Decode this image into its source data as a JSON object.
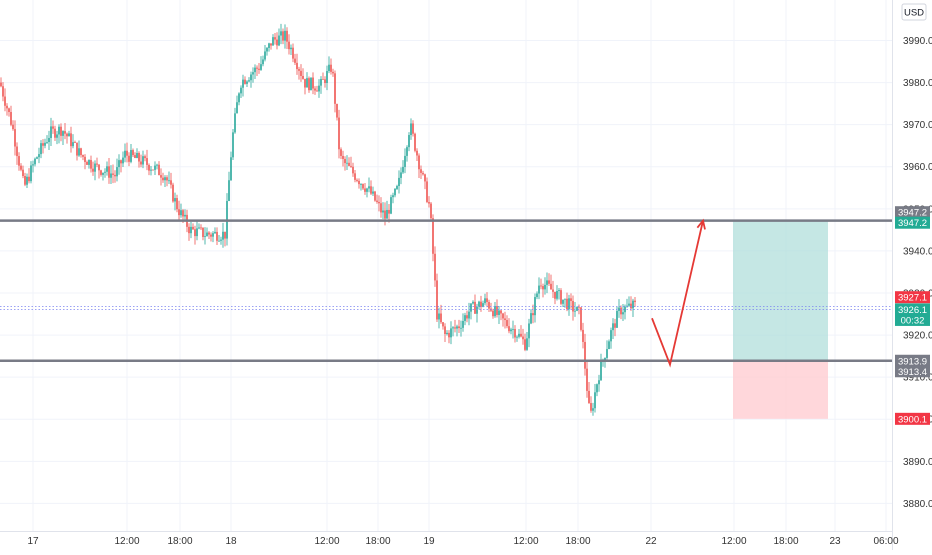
{
  "header": {
    "currency": "USD"
  },
  "chart_data": {
    "type": "candlestick",
    "currency": "USD",
    "ylim": [
      3877,
      3998
    ],
    "x_ticks": [
      "17",
      "12:00",
      "18:00",
      "18",
      "12:00",
      "18:00",
      "19",
      "12:00",
      "18:00",
      "22",
      "12:00",
      "18:00",
      "23",
      "06:00"
    ],
    "y_ticks": [
      3880.0,
      3890.0,
      3900.0,
      3910.0,
      3920.0,
      3930.0,
      3940.0,
      3950.0,
      3960.0,
      3970.0,
      3980.0,
      3990.0
    ],
    "price_path": [
      [
        0,
        3980
      ],
      [
        12,
        3970
      ],
      [
        24,
        3955
      ],
      [
        36,
        3962
      ],
      [
        50,
        3968
      ],
      [
        62,
        3969
      ],
      [
        80,
        3963
      ],
      [
        95,
        3960
      ],
      [
        115,
        3958
      ],
      [
        125,
        3963
      ],
      [
        145,
        3961
      ],
      [
        165,
        3958
      ],
      [
        178,
        3950
      ],
      [
        190,
        3945
      ],
      [
        205,
        3944
      ],
      [
        225,
        3944
      ],
      [
        232,
        3966
      ],
      [
        240,
        3980
      ],
      [
        260,
        3984
      ],
      [
        272,
        3990
      ],
      [
        285,
        3991
      ],
      [
        295,
        3986
      ],
      [
        305,
        3980
      ],
      [
        320,
        3979
      ],
      [
        332,
        3984
      ],
      [
        340,
        3962
      ],
      [
        355,
        3958
      ],
      [
        370,
        3954
      ],
      [
        385,
        3948
      ],
      [
        398,
        3955
      ],
      [
        410,
        3970
      ],
      [
        420,
        3960
      ],
      [
        430,
        3950
      ],
      [
        437,
        3925
      ],
      [
        445,
        3920
      ],
      [
        458,
        3922
      ],
      [
        470,
        3926
      ],
      [
        486,
        3928
      ],
      [
        500,
        3924
      ],
      [
        515,
        3921
      ],
      [
        525,
        3918
      ],
      [
        540,
        3933
      ],
      [
        555,
        3930
      ],
      [
        570,
        3927
      ],
      [
        580,
        3925
      ],
      [
        590,
        3900
      ],
      [
        598,
        3910
      ],
      [
        610,
        3920
      ],
      [
        620,
        3926
      ],
      [
        635,
        3927
      ]
    ],
    "levels": [
      {
        "price": 3947.2,
        "label": "3947.2",
        "color": "#787b86"
      },
      {
        "price": 3913.9,
        "label": "3913.9",
        "color": "#787b86"
      },
      {
        "price": 3926.4,
        "label": "",
        "color": "#7b83f0"
      }
    ],
    "price_labels": [
      {
        "text": "3947.2",
        "price": 3949.2,
        "color": "#787b86"
      },
      {
        "text": "3947.2",
        "price": 3946.7,
        "color": "#22ab94"
      },
      {
        "text": "3927.1",
        "price": 3929.0,
        "color": "#f23645"
      },
      {
        "text": "3926.1",
        "price": 3926.1,
        "color": "#22ab94"
      },
      {
        "text": "00:32",
        "price": 3923.6,
        "color": "#22ab94"
      },
      {
        "text": "3913.9",
        "price": 3913.9,
        "color": "#787b86"
      },
      {
        "text": "3913.4",
        "price": 3911.4,
        "color": "#787b86"
      },
      {
        "text": "3900.1",
        "price": 3900.1,
        "color": "#f23645"
      }
    ],
    "position": {
      "entry": 3913.9,
      "target": 3947.2,
      "stop": 3900.1,
      "profit_color": "#b2dfdb",
      "loss_color": "#ffcdd2"
    },
    "projection": [
      [
        652,
        3924
      ],
      [
        670,
        3913
      ],
      [
        703,
        3947.2
      ]
    ],
    "up_color": "#26a69a",
    "down_color": "#ef5350"
  }
}
